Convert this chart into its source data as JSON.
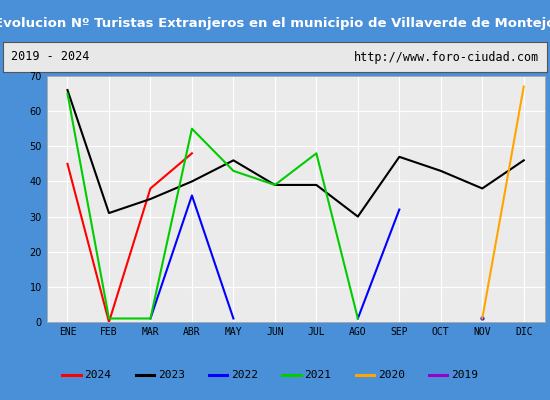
{
  "title": "Evolucion Nº Turistas Extranjeros en el municipio de Villaverde de Montejo",
  "subtitle_left": "2019 - 2024",
  "subtitle_right": "http://www.foro-ciudad.com",
  "months": [
    "ENE",
    "FEB",
    "MAR",
    "ABR",
    "MAY",
    "JUN",
    "JUL",
    "AGO",
    "SEP",
    "OCT",
    "NOV",
    "DIC"
  ],
  "ylim": [
    0,
    70
  ],
  "yticks": [
    0,
    10,
    20,
    30,
    40,
    50,
    60,
    70
  ],
  "series": {
    "2024": {
      "color": "#ff0000",
      "data": [
        45,
        0,
        38,
        48,
        null,
        null,
        null,
        null,
        null,
        null,
        null,
        null
      ]
    },
    "2023": {
      "color": "#000000",
      "data": [
        66,
        31,
        35,
        40,
        46,
        39,
        39,
        30,
        47,
        43,
        38,
        46
      ]
    },
    "2022": {
      "color": "#0000ff",
      "data": [
        null,
        null,
        1,
        36,
        1,
        null,
        null,
        1,
        32,
        null,
        1,
        null
      ]
    },
    "2021": {
      "color": "#00cc00",
      "data": [
        65,
        1,
        1,
        55,
        43,
        39,
        48,
        1,
        null,
        null,
        null,
        null
      ]
    },
    "2020": {
      "color": "#ffa500",
      "data": [
        null,
        null,
        null,
        null,
        null,
        null,
        null,
        null,
        null,
        null,
        1,
        67
      ]
    },
    "2019": {
      "color": "#9900cc",
      "data": [
        null,
        null,
        null,
        null,
        null,
        null,
        null,
        null,
        null,
        null,
        null,
        null
      ]
    }
  },
  "legend_order": [
    "2024",
    "2023",
    "2022",
    "2021",
    "2020",
    "2019"
  ],
  "title_bg_color": "#2a72c3",
  "title_text_color": "#ffffff",
  "subtitle_bg_color": "#e8e8e8",
  "plot_bg_color": "#ebebeb",
  "grid_color": "#ffffff",
  "outer_border_color": "#4a90d9",
  "inner_border_color": "#888888"
}
